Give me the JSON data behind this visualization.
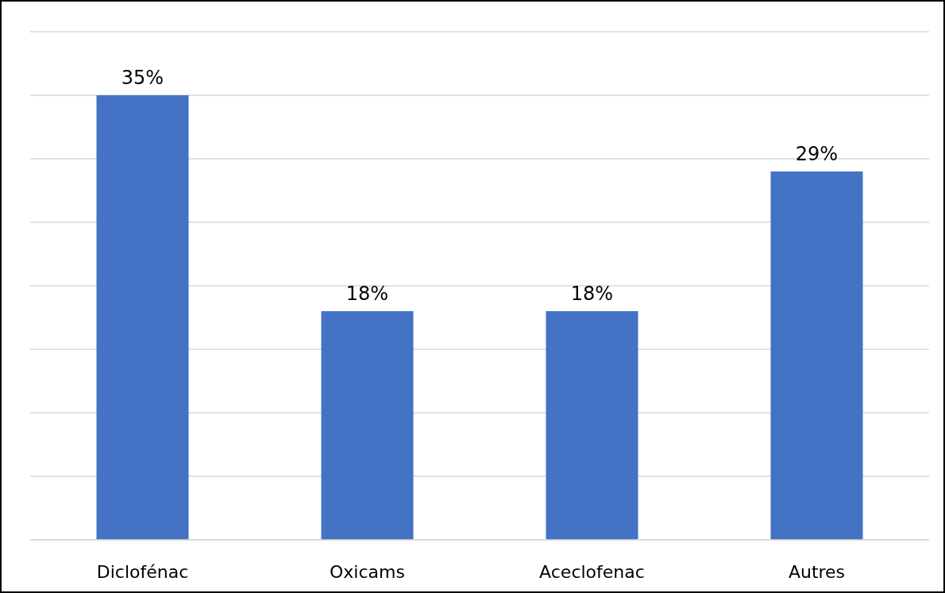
{
  "chart_data": {
    "type": "bar",
    "categories": [
      "Diclofénac",
      "Oxicams",
      "Aceclofenac",
      "Autres"
    ],
    "values": [
      35,
      18,
      18,
      29
    ],
    "value_labels": [
      "35%",
      "18%",
      "18%",
      "29%"
    ],
    "color": "#4472c4",
    "ylim": [
      0,
      40
    ],
    "yticks": [
      {
        "value": 0,
        "label": null
      },
      {
        "value": 5,
        "label": null
      },
      {
        "value": 10,
        "label": null
      },
      {
        "value": 15,
        "label": null
      },
      {
        "value": 20,
        "label": null
      },
      {
        "value": 25,
        "label": null
      },
      {
        "value": 30,
        "label": null
      },
      {
        "value": 35,
        "label": null
      },
      {
        "value": 40,
        "label": null
      }
    ],
    "grid": "y",
    "tick_labels": "x"
  }
}
